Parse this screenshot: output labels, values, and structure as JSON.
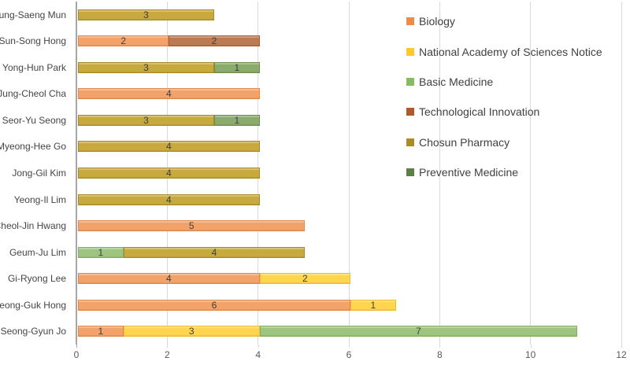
{
  "chart_data": {
    "type": "bar",
    "orientation": "horizontal",
    "stacked": true,
    "title": "",
    "categories": [
      "Chung-Saeng Mun",
      "Sun-Song Hong",
      "Yong-Hun Park",
      "Jung-Cheol Cha",
      "Seor-Yu Seong",
      "Myeong-Hee Go",
      "Jong-Gil Kim",
      "Yeong-Il Lim",
      "Cheol-Jin Hwang",
      "Geum-Ju Lim",
      "Gi-Ryong Lee",
      "Seong-Guk Hong",
      "Seong-Gyun Jo"
    ],
    "series": [
      {
        "name": "Biology",
        "swatch": "#ED8B4B",
        "fill": "#F3A369",
        "border": "#E0884E",
        "values": [
          0,
          2,
          0,
          4,
          0,
          0,
          0,
          0,
          5,
          0,
          4,
          6,
          1
        ]
      },
      {
        "name": "National Academy of Sciences Notice",
        "swatch": "#FFC82E",
        "fill": "#FFD44E",
        "border": "#EFBC35",
        "values": [
          0,
          0,
          0,
          0,
          0,
          0,
          0,
          0,
          0,
          0,
          2,
          1,
          3
        ]
      },
      {
        "name": "Basic Medicine",
        "swatch": "#87BB62",
        "fill": "#9DC57E",
        "border": "#83AF62",
        "values": [
          0,
          0,
          0,
          0,
          0,
          0,
          0,
          0,
          0,
          1,
          0,
          0,
          7
        ]
      },
      {
        "name": "Technological Innovation",
        "swatch": "#AD5B2A",
        "fill": "#BC7A52",
        "border": "#A35F35",
        "values": [
          0,
          2,
          0,
          0,
          0,
          0,
          0,
          0,
          0,
          0,
          0,
          0,
          0
        ]
      },
      {
        "name": "Chosun Pharmacy",
        "swatch": "#AC8C27",
        "fill": "#C8A93F",
        "border": "#A88B25",
        "values": [
          3,
          0,
          3,
          0,
          3,
          4,
          4,
          4,
          0,
          4,
          0,
          0,
          0
        ]
      },
      {
        "name": "Preventive Medicine",
        "swatch": "#5E7F43",
        "fill": "#8BAB6B",
        "border": "#6F8D51",
        "values": [
          0,
          0,
          1,
          0,
          1,
          0,
          0,
          0,
          0,
          0,
          0,
          0,
          0
        ]
      }
    ],
    "xlim": [
      0,
      12
    ],
    "xticks": [
      0,
      2,
      4,
      6,
      8,
      10,
      12
    ],
    "xtick_labels": [
      "0",
      "2",
      "4",
      "6",
      "8",
      "10",
      "12"
    ],
    "grid": "vertical",
    "legend_position": "right-overlay",
    "data_labels": true
  },
  "colors": {
    "background": "#FFFFFF",
    "gridline": "#D9D9D9",
    "axis_line": "#A6A6A6",
    "category_label_text": "#454545",
    "tick_label_text": "#595959",
    "data_label_text": "#3F3F3F",
    "legend_text": "#404040"
  }
}
